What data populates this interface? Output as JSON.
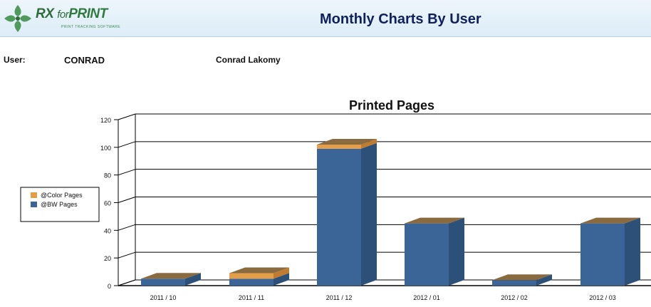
{
  "header": {
    "logo_text_rx": "RX",
    "logo_text_for": "for",
    "logo_text_print": "PRINT",
    "logo_tagline": "PRINT TRACKING SOFTWARE",
    "title": "Monthly Charts By User"
  },
  "user": {
    "label": "User:",
    "id": "CONRAD",
    "full_name": "Conrad Lakomy"
  },
  "colors": {
    "bw": "#3a6596",
    "bw_side": "#2d5078",
    "color": "#e49e4a",
    "top": "#8a6a3f"
  },
  "chart_data": {
    "type": "bar",
    "stacked": true,
    "three_d": true,
    "title": "Printed Pages",
    "categories": [
      "2011 / 10",
      "2011 / 11",
      "2011 / 12",
      "2012 / 01",
      "2012 / 02",
      "2012 / 03"
    ],
    "series": [
      {
        "name": "@BW Pages",
        "values": [
          5,
          5,
          99,
          45,
          4,
          45
        ]
      },
      {
        "name": "@Color Pages",
        "values": [
          0,
          4,
          3,
          0,
          0,
          0
        ]
      }
    ],
    "legend_order": [
      "@Color Pages",
      "@BW Pages"
    ],
    "ylim": [
      0,
      120
    ],
    "yticks": [
      0,
      20,
      40,
      60,
      80,
      100,
      120
    ],
    "grid": true,
    "legend_position": "left"
  }
}
